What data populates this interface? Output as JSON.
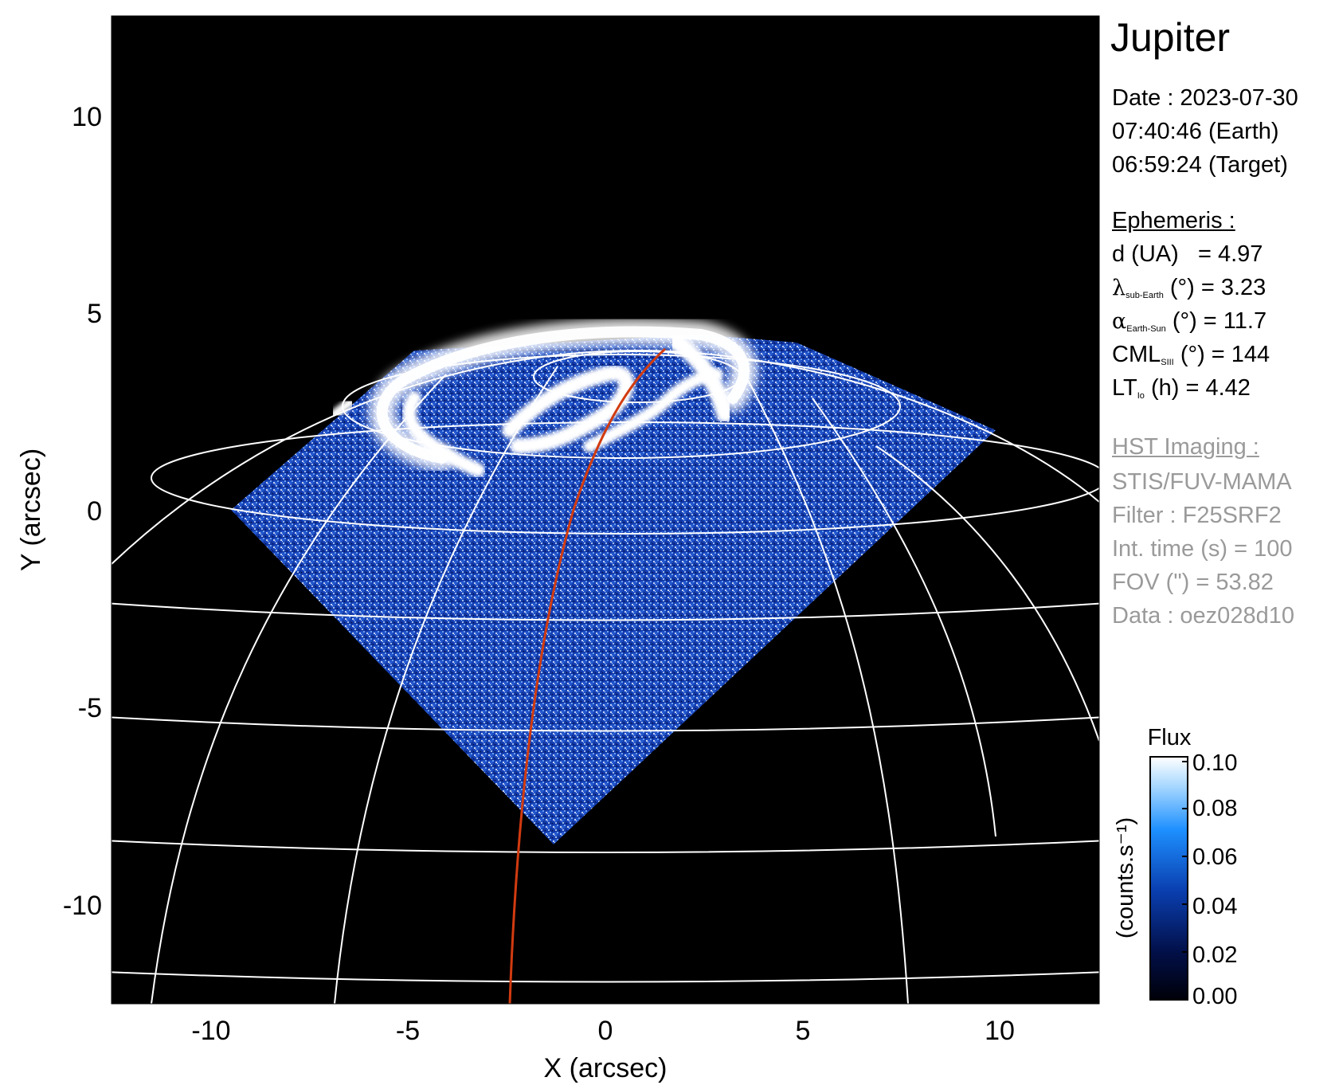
{
  "planet": "Jupiter",
  "date": {
    "line1": "Date : 2023-07-30",
    "line2": "07:40:46 (Earth)",
    "line3": "06:59:24 (Target)"
  },
  "ephemeris": {
    "title": "Ephemeris :",
    "d_label": "d (UA)",
    "d_value": "= 4.97",
    "lat_symbol": "λ",
    "lat_sub": "sub-Earth",
    "lat_rest": "(°) = 3.23",
    "phase_symbol": "α",
    "phase_sub": "Earth-Sun",
    "phase_rest": "(°) = 11.7",
    "cml_label": "CML",
    "cml_sub": "SIII",
    "cml_rest": "(°) = 144",
    "lt_label": "LT",
    "lt_sub": "Io",
    "lt_rest": "(h) = 4.42"
  },
  "imaging": {
    "title": "HST Imaging :",
    "instrument": "STIS/FUV-MAMA",
    "filter": "Filter : F25SRF2",
    "int_time": "Int. time (s) = 100",
    "fov": "FOV (\") = 53.82",
    "data": "Data : oez028d10"
  },
  "axes": {
    "xlabel": "X (arcsec)",
    "ylabel": "Y (arcsec)",
    "xticks": [
      "-10",
      "-5",
      "0",
      "5",
      "10"
    ],
    "yticks": [
      "10",
      "5",
      "0",
      "-5",
      "-10"
    ],
    "xlim": [
      -12.5,
      12.5
    ],
    "ylim": [
      -12.5,
      12.5
    ]
  },
  "colorbar": {
    "title": "Flux",
    "label": "(counts.s⁻¹)",
    "ticks": [
      "0.10",
      "0.08",
      "0.06",
      "0.04",
      "0.02",
      "0.00"
    ],
    "range": [
      0.0,
      0.1
    ]
  },
  "colors": {
    "background": "#000000",
    "grid": "#ffffff",
    "io_footprint": "#d23b10",
    "emission_high": "#ffffff",
    "emission_low": "#0a2a8c"
  }
}
